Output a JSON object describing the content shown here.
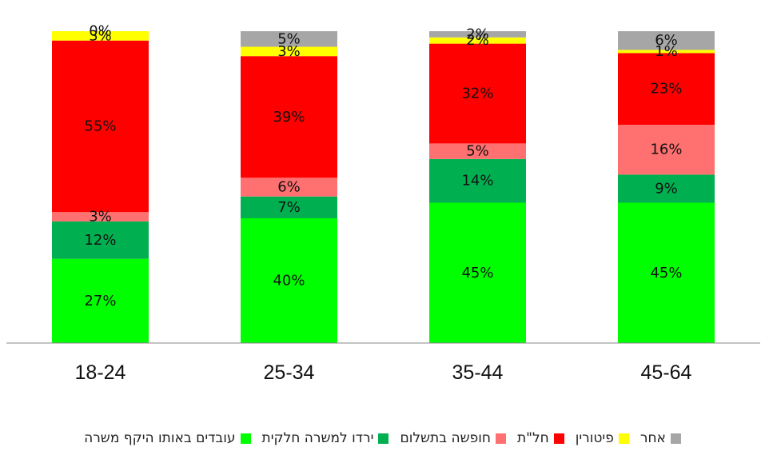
{
  "chart_data": {
    "type": "bar",
    "stacked": true,
    "percent": true,
    "categories": [
      "18-24",
      "25-34",
      "35-44",
      "45-64"
    ],
    "series": [
      {
        "name": "עובדים באותו היקף משרה",
        "color": "#00ff00",
        "values": [
          27,
          40,
          45,
          45
        ],
        "labels": [
          "27%",
          "40%",
          "45%",
          "45%"
        ]
      },
      {
        "name": "ירדו למשרה חלקית",
        "color": "#00b050",
        "values": [
          12,
          7,
          14,
          9
        ],
        "labels": [
          "12%",
          "7%",
          "14%",
          "9%"
        ]
      },
      {
        "name": "חופשה בתשלום",
        "color": "#ff7070",
        "values": [
          3,
          6,
          5,
          16
        ],
        "labels": [
          "3%",
          "6%",
          "5%",
          "16%"
        ]
      },
      {
        "name": "חל\"ת",
        "color": "#ff0000",
        "values": [
          55,
          39,
          32,
          23
        ],
        "labels": [
          "55%",
          "39%",
          "32%",
          "23%"
        ]
      },
      {
        "name": "פיטורין",
        "color": "#ffff00",
        "values": [
          3,
          3,
          2,
          1
        ],
        "labels": [
          "3%",
          "3%",
          "2%",
          "1%"
        ]
      },
      {
        "name": "אחר",
        "color": "#a6a6a6",
        "values": [
          0,
          5,
          2,
          6
        ],
        "labels": [
          "0%",
          "5%",
          "2%",
          "6%"
        ]
      }
    ],
    "ylim": [
      0,
      100
    ],
    "grid": false,
    "legend_position": "bottom"
  }
}
